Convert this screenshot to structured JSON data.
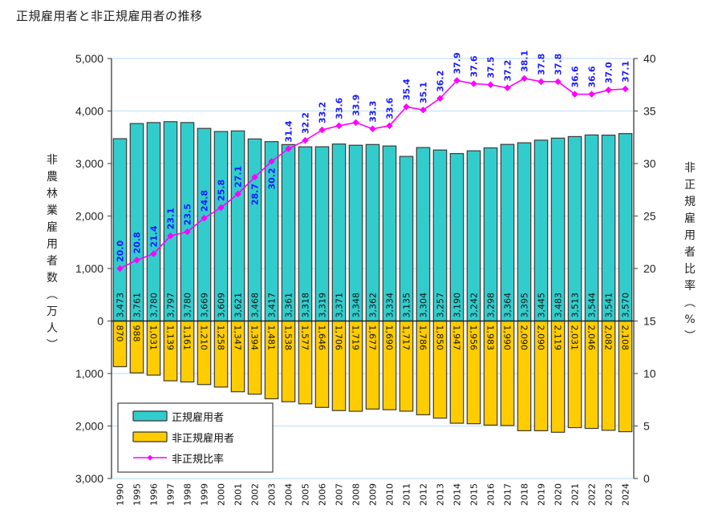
{
  "title": "正規雇用者と非正規雇用者の推移",
  "chart_data": {
    "type": "bar",
    "subtype": "diverging-bar-with-line",
    "title": "正規雇用者と非正規雇用者の推移",
    "xlabel": "",
    "ylabel": "非農林業雇用者数（万人）",
    "y2label": "非正規雇用者比率（%）",
    "categories": [
      "1990",
      "1995",
      "1996",
      "1997",
      "1998",
      "1999",
      "2000",
      "2001",
      "2002",
      "2003",
      "2004",
      "2005",
      "2006",
      "2007",
      "2008",
      "2009",
      "2010",
      "2011",
      "2012",
      "2013",
      "2014",
      "2015",
      "2016",
      "2017",
      "2018",
      "2019",
      "2020",
      "2021",
      "2022",
      "2023",
      "2024"
    ],
    "ylim": [
      -3000,
      5000
    ],
    "y_ticks": [
      5000,
      4000,
      3000,
      2000,
      1000,
      0,
      -1000,
      -2000,
      -3000
    ],
    "y_tick_labels": [
      "5,000",
      "4,000",
      "3,000",
      "2,000",
      "1,000",
      "0",
      "1,000",
      "2,000",
      "3,000"
    ],
    "y2lim": [
      0,
      40
    ],
    "y2_ticks": [
      40,
      35,
      30,
      25,
      20,
      15,
      10,
      5,
      0
    ],
    "y2_tick_labels": [
      "40",
      "35",
      "30",
      "25",
      "20",
      "15",
      "10",
      "5",
      "0"
    ],
    "grid": true,
    "legend_position": "bottom-left",
    "series": [
      {
        "name": "正規雇用者",
        "type": "bar",
        "direction": "up",
        "axis": "left",
        "color": "#33cccc",
        "values": [
          3473,
          3761,
          3780,
          3797,
          3780,
          3669,
          3609,
          3621,
          3468,
          3417,
          3361,
          3318,
          3319,
          3371,
          3348,
          3362,
          3334,
          3135,
          3304,
          3257,
          3190,
          3242,
          3298,
          3364,
          3395,
          3445,
          3483,
          3513,
          3544,
          3541,
          3570
        ],
        "labels": [
          "3,473",
          "3,761",
          "3,780",
          "3,797",
          "3,780",
          "3,669",
          "3,609",
          "3,621",
          "3,468",
          "3,417",
          "3,361",
          "3,318",
          "3,319",
          "3,371",
          "3,348",
          "3,362",
          "3,334",
          "3,135",
          "3,304",
          "3,257",
          "3,190",
          "3,242",
          "3,298",
          "3,364",
          "3,395",
          "3,445",
          "3,483",
          "3,513",
          "3,544",
          "3,541",
          "3,570"
        ]
      },
      {
        "name": "非正規雇用者",
        "type": "bar",
        "direction": "down",
        "axis": "left",
        "color": "#ffcc00",
        "values": [
          870,
          988,
          1031,
          1139,
          1161,
          1210,
          1258,
          1347,
          1394,
          1481,
          1538,
          1577,
          1646,
          1706,
          1719,
          1677,
          1690,
          1717,
          1786,
          1850,
          1947,
          1956,
          1983,
          1990,
          2090,
          2090,
          2119,
          2031,
          2046,
          2082,
          2108
        ],
        "labels": [
          "870",
          "988",
          "1,031",
          "1,139",
          "1,161",
          "1,210",
          "1,258",
          "1,347",
          "1,394",
          "1,481",
          "1,538",
          "1,577",
          "1,646",
          "1,706",
          "1,719",
          "1,677",
          "1,690",
          "1,717",
          "1,786",
          "1,850",
          "1,947",
          "1,956",
          "1,983",
          "1,990",
          "2,090",
          "2,090",
          "2,119",
          "2,031",
          "2,046",
          "2,082",
          "2,108"
        ]
      },
      {
        "name": "非正規比率",
        "type": "line",
        "axis": "right",
        "color": "#ff00ff",
        "label_color": "#1a1aff",
        "values": [
          20.0,
          20.8,
          21.4,
          23.1,
          23.5,
          24.8,
          25.8,
          27.1,
          28.7,
          30.2,
          31.4,
          32.2,
          33.2,
          33.6,
          33.9,
          33.3,
          33.6,
          35.4,
          35.1,
          36.2,
          37.9,
          37.6,
          37.5,
          37.2,
          38.1,
          37.8,
          37.8,
          36.6,
          36.6,
          37.0,
          37.1
        ],
        "labels": [
          "20.0",
          "20.8",
          "21.4",
          "23.1",
          "23.5",
          "24.8",
          "25.8",
          "27.1",
          "28.7",
          "30.2",
          "31.4",
          "32.2",
          "33.2",
          "33.6",
          "33.9",
          "33.3",
          "33.6",
          "35.4",
          "35.1",
          "36.2",
          "37.9",
          "37.6",
          "37.5",
          "37.2",
          "38.1",
          "37.8",
          "37.8",
          "36.6",
          "36.6",
          "37.0",
          "37.1"
        ]
      }
    ],
    "legend": [
      "正規雇用者",
      "非正規雇用者",
      "非正規比率"
    ]
  }
}
